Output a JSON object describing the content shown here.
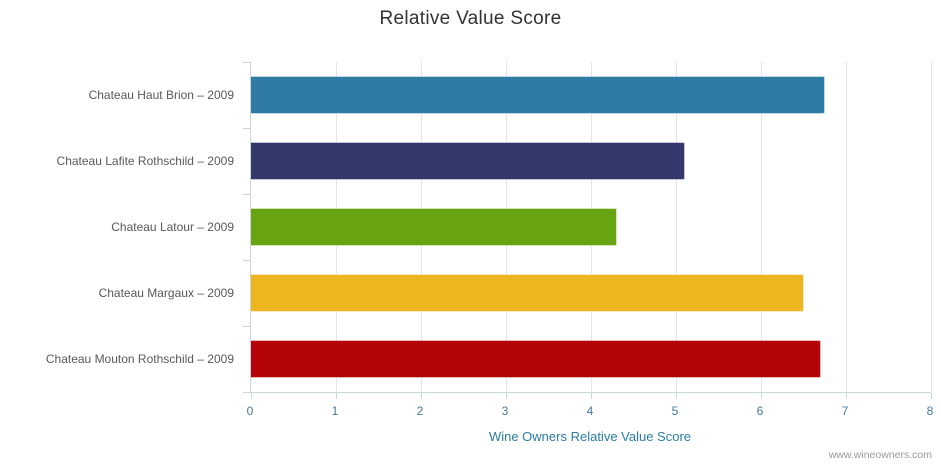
{
  "chart_data": {
    "type": "bar",
    "orientation": "horizontal",
    "title": "Relative Value Score",
    "xlabel": "Wine Owners Relative Value Score",
    "categories": [
      "Chateau Haut Brion – 2009",
      "Chateau Lafite Rothschild – 2009",
      "Chateau Latour – 2009",
      "Chateau Margaux – 2009",
      "Chateau Mouton Rothschild – 2009"
    ],
    "values": [
      6.75,
      5.1,
      4.3,
      6.5,
      6.7
    ],
    "bar_colors": [
      "#2e7ca6",
      "#35386b",
      "#68a412",
      "#edb51f",
      "#b50408"
    ],
    "xlim": [
      0,
      8
    ],
    "xticks": [
      0,
      1,
      2,
      3,
      4,
      5,
      6,
      7,
      8
    ],
    "grid": true,
    "legend": "none"
  },
  "credits": "www.wineowners.com",
  "colors": {
    "title": "#333333",
    "category_label": "#595959",
    "tick_label": "#44789c",
    "axis_title": "#2c7ca7",
    "credits": "#999999",
    "gridline": "#e4e4e4",
    "axis_line": "#c9d6dc"
  }
}
